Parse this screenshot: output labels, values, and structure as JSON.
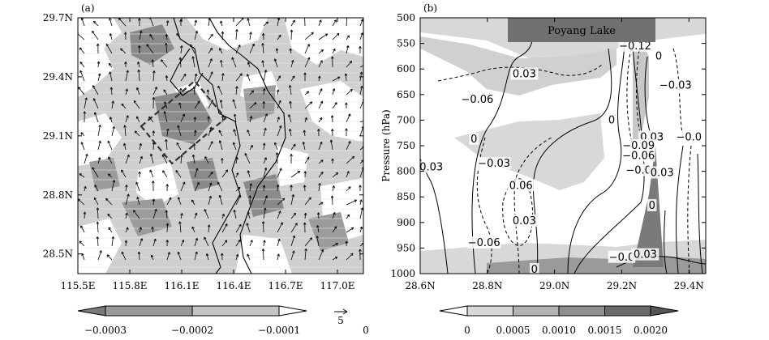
{
  "chart_data": [
    {
      "type": "heatmap",
      "panel_label": "(a)",
      "x_tick_labels": [
        "115.5E",
        "115.8E",
        "116.1E",
        "116.4E",
        "116.7E",
        "117.0E"
      ],
      "y_tick_labels": [
        "29.7N",
        "29.4N",
        "29.1N",
        "28.8N",
        "28.5N"
      ],
      "xlim": [
        115.5,
        117.15
      ],
      "ylim": [
        28.4,
        29.7
      ],
      "colorbar": {
        "ticks": [
          "-0.0003",
          "-0.0002",
          "-0.0001",
          "0"
        ],
        "colors": [
          "#7a7a7a",
          "#9a9a9a",
          "#c4c4c4",
          "#ffffff"
        ]
      },
      "vector_reference": "5"
    },
    {
      "type": "heatmap",
      "panel_label": "(b)",
      "ylabel": "Pressure (hPa)",
      "x_tick_labels": [
        "28.6N",
        "28.8N",
        "29.0N",
        "29.2N",
        "29.4N"
      ],
      "y_tick_labels": [
        "500",
        "550",
        "600",
        "650",
        "700",
        "750",
        "800",
        "850",
        "900",
        "950",
        "1000"
      ],
      "xlim": [
        28.6,
        29.45
      ],
      "ylim": [
        1000,
        500
      ],
      "annotation": "Poyang Lake",
      "contour_labels": [
        {
          "text": "-0.12",
          "x": 29.24,
          "p": 555
        },
        {
          "text": "0",
          "x": 29.31,
          "p": 575
        },
        {
          "text": "0.03",
          "x": 28.91,
          "p": 610
        },
        {
          "text": "-0.03",
          "x": 29.36,
          "p": 632
        },
        {
          "text": "-0.06",
          "x": 28.77,
          "p": 660
        },
        {
          "text": "0",
          "x": 29.17,
          "p": 700
        },
        {
          "text": "0.03",
          "x": 29.29,
          "p": 733
        },
        {
          "text": "-0.0",
          "x": 29.4,
          "p": 733
        },
        {
          "text": "-0.09",
          "x": 29.25,
          "p": 750
        },
        {
          "text": "0",
          "x": 28.76,
          "p": 737
        },
        {
          "text": "-0.06",
          "x": 29.25,
          "p": 770
        },
        {
          "text": "-0.03",
          "x": 28.62,
          "p": 792
        },
        {
          "text": "-0.03",
          "x": 28.82,
          "p": 785
        },
        {
          "text": "-0.0",
          "x": 29.25,
          "p": 798
        },
        {
          "text": "0.03",
          "x": 29.32,
          "p": 803
        },
        {
          "text": "0.06",
          "x": 28.9,
          "p": 828
        },
        {
          "text": "0",
          "x": 29.29,
          "p": 867
        },
        {
          "text": "0.03",
          "x": 28.91,
          "p": 897
        },
        {
          "text": "-0.06",
          "x": 28.79,
          "p": 940
        },
        {
          "text": "-0.0",
          "x": 29.2,
          "p": 968
        },
        {
          "text": "0.03",
          "x": 29.27,
          "p": 963
        },
        {
          "text": "0",
          "x": 28.94,
          "p": 992
        }
      ],
      "colorbar": {
        "ticks": [
          "0",
          "0.0005",
          "0.0010",
          "0.0015",
          "0.0020"
        ],
        "colors": [
          "#ffffff",
          "#d8d8d8",
          "#b4b4b4",
          "#8e8e8e",
          "#6a6a6a",
          "#555555"
        ]
      }
    }
  ]
}
